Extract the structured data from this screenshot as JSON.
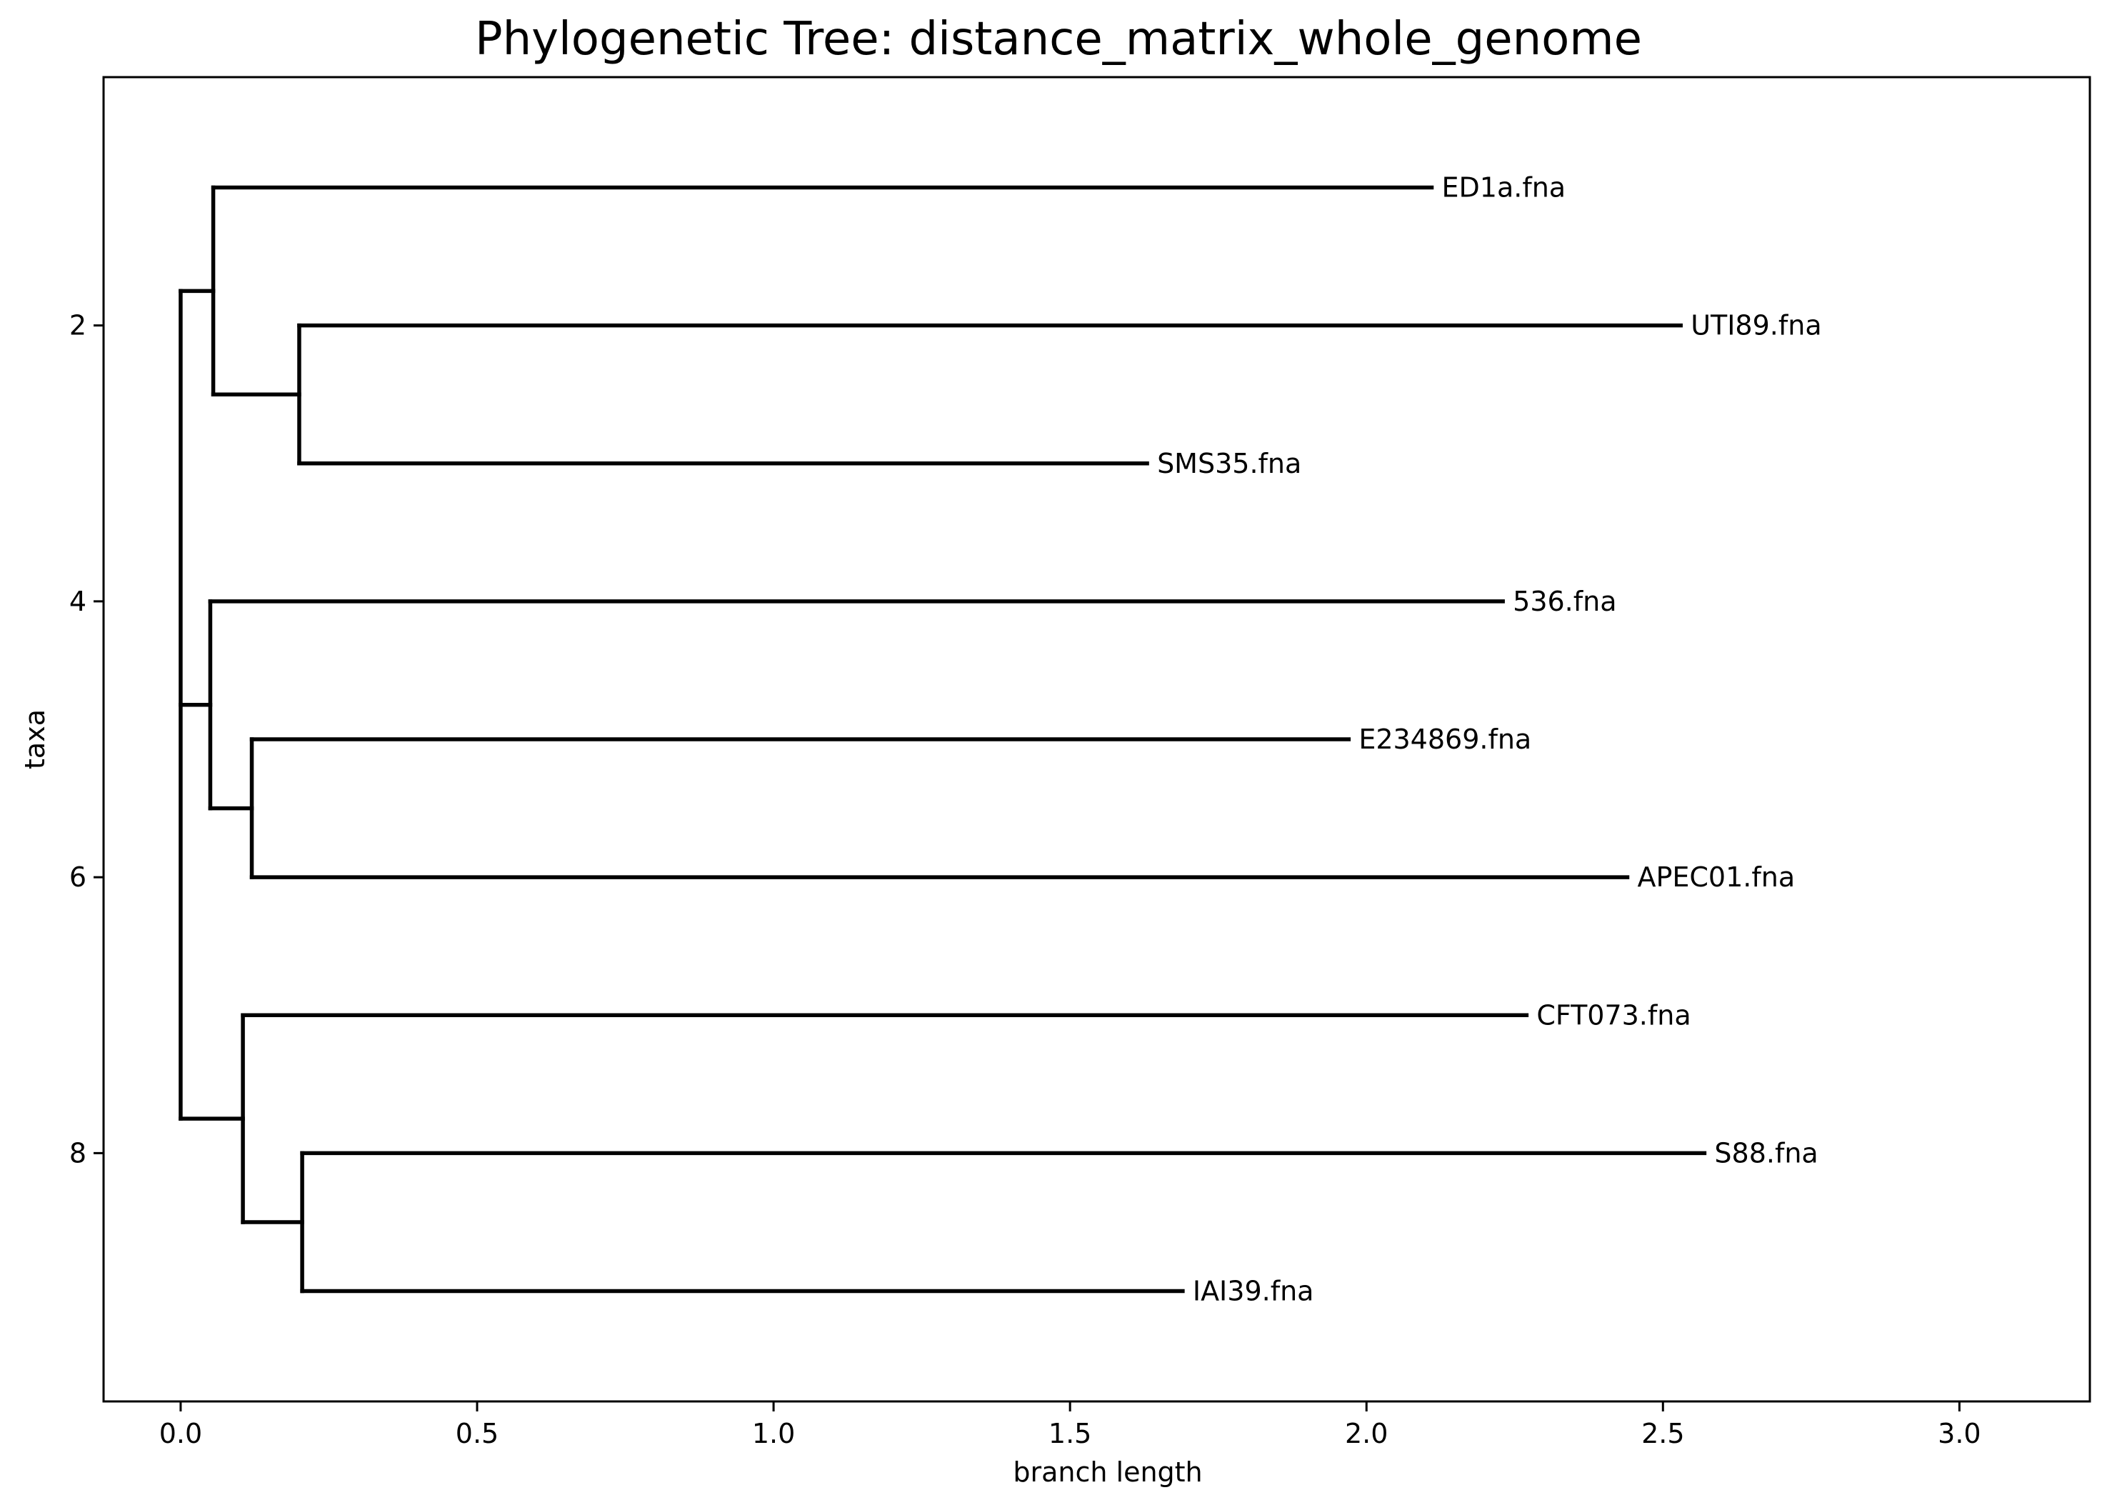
{
  "chart_data": {
    "type": "dendrogram",
    "title": "Phylogenetic Tree: distance_matrix_whole_genome",
    "xlabel": "branch length",
    "ylabel": "taxa",
    "xlim": [
      -0.13,
      3.22
    ],
    "ylim": [
      9.8,
      0.2
    ],
    "xticks": [
      "0.0",
      "0.5",
      "1.0",
      "1.5",
      "2.0",
      "2.5",
      "3.0"
    ],
    "xtick_values": [
      0.0,
      0.5,
      1.0,
      1.5,
      2.0,
      2.5,
      3.0
    ],
    "yticks": [
      "2",
      "4",
      "6",
      "8"
    ],
    "ytick_values": [
      2,
      4,
      6,
      8
    ],
    "grid": false,
    "leaves": [
      {
        "name": "ED1a.fna",
        "y": 1,
        "x": 2.11
      },
      {
        "name": "UTI89.fna",
        "y": 2,
        "x": 2.53
      },
      {
        "name": "SMS35.fna",
        "y": 3,
        "x": 1.63
      },
      {
        "name": "536.fna",
        "y": 4,
        "x": 2.23
      },
      {
        "name": "E234869.fna",
        "y": 5,
        "x": 1.97
      },
      {
        "name": "APEC01.fna",
        "y": 6,
        "x": 2.44
      },
      {
        "name": "CFT073.fna",
        "y": 7,
        "x": 2.27
      },
      {
        "name": "S88.fna",
        "y": 8,
        "x": 2.57
      },
      {
        "name": "IAI39.fna",
        "y": 9,
        "x": 1.69
      }
    ],
    "internal_nodes": [
      {
        "id": "root",
        "x": 0.0,
        "y": 4.75,
        "children": [
          "c1",
          "c2",
          "c3"
        ]
      },
      {
        "id": "c1",
        "x": 0.055,
        "y": 1.75,
        "children": [
          "ED1a.fna",
          "c1a"
        ]
      },
      {
        "id": "c1a",
        "x": 0.2,
        "y": 2.5,
        "children": [
          "UTI89.fna",
          "SMS35.fna"
        ]
      },
      {
        "id": "c2",
        "x": 0.05,
        "y": 4.75,
        "children": [
          "536.fna",
          "c2a"
        ]
      },
      {
        "id": "c2a",
        "x": 0.12,
        "y": 5.5,
        "children": [
          "E234869.fna",
          "APEC01.fna"
        ]
      },
      {
        "id": "c3",
        "x": 0.105,
        "y": 7.75,
        "children": [
          "CFT073.fna",
          "c3a"
        ]
      },
      {
        "id": "c3a",
        "x": 0.205,
        "y": 8.5,
        "children": [
          "S88.fna",
          "IAI39.fna"
        ]
      }
    ]
  }
}
